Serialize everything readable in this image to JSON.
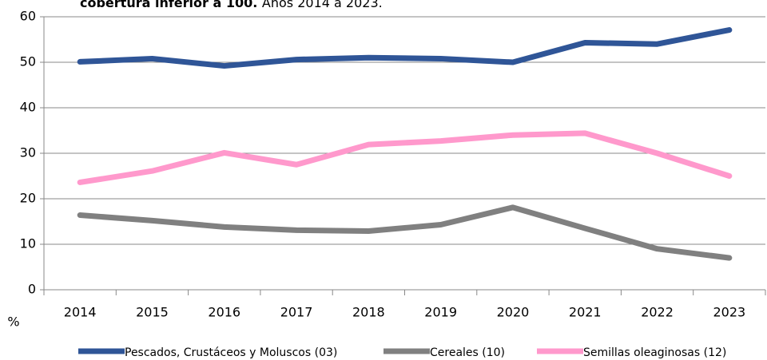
{
  "chart_data": {
    "type": "line",
    "title": {
      "bold": "cobertura inferior a 100.",
      "text": "Años 2014 a 2023."
    },
    "y_label": "%",
    "categories": [
      "2014",
      "2015",
      "2016",
      "2017",
      "2018",
      "2019",
      "2020",
      "2021",
      "2022",
      "2023"
    ],
    "series": [
      {
        "name": "Pescados, Crustáceos y Moluscos (03)",
        "color": "#2f5597",
        "values": [
          50.1,
          50.8,
          49.2,
          50.6,
          51.0,
          50.8,
          50.0,
          54.3,
          54.0,
          57.1
        ]
      },
      {
        "name": "Cereales (10)",
        "color": "#808080",
        "values": [
          16.4,
          15.2,
          13.8,
          13.1,
          12.9,
          14.3,
          18.1,
          13.5,
          9.0,
          7.0
        ]
      },
      {
        "name": "Semillas oleaginosas (12)",
        "color": "#ff99cc",
        "values": [
          23.6,
          26.1,
          30.1,
          27.5,
          31.9,
          32.7,
          34.0,
          34.4,
          30.0,
          25.0
        ]
      }
    ],
    "ylim": [
      0,
      60
    ],
    "yticks": [
      0,
      10,
      20,
      30,
      40,
      50,
      60
    ],
    "grid": true,
    "legend": "bottom"
  }
}
